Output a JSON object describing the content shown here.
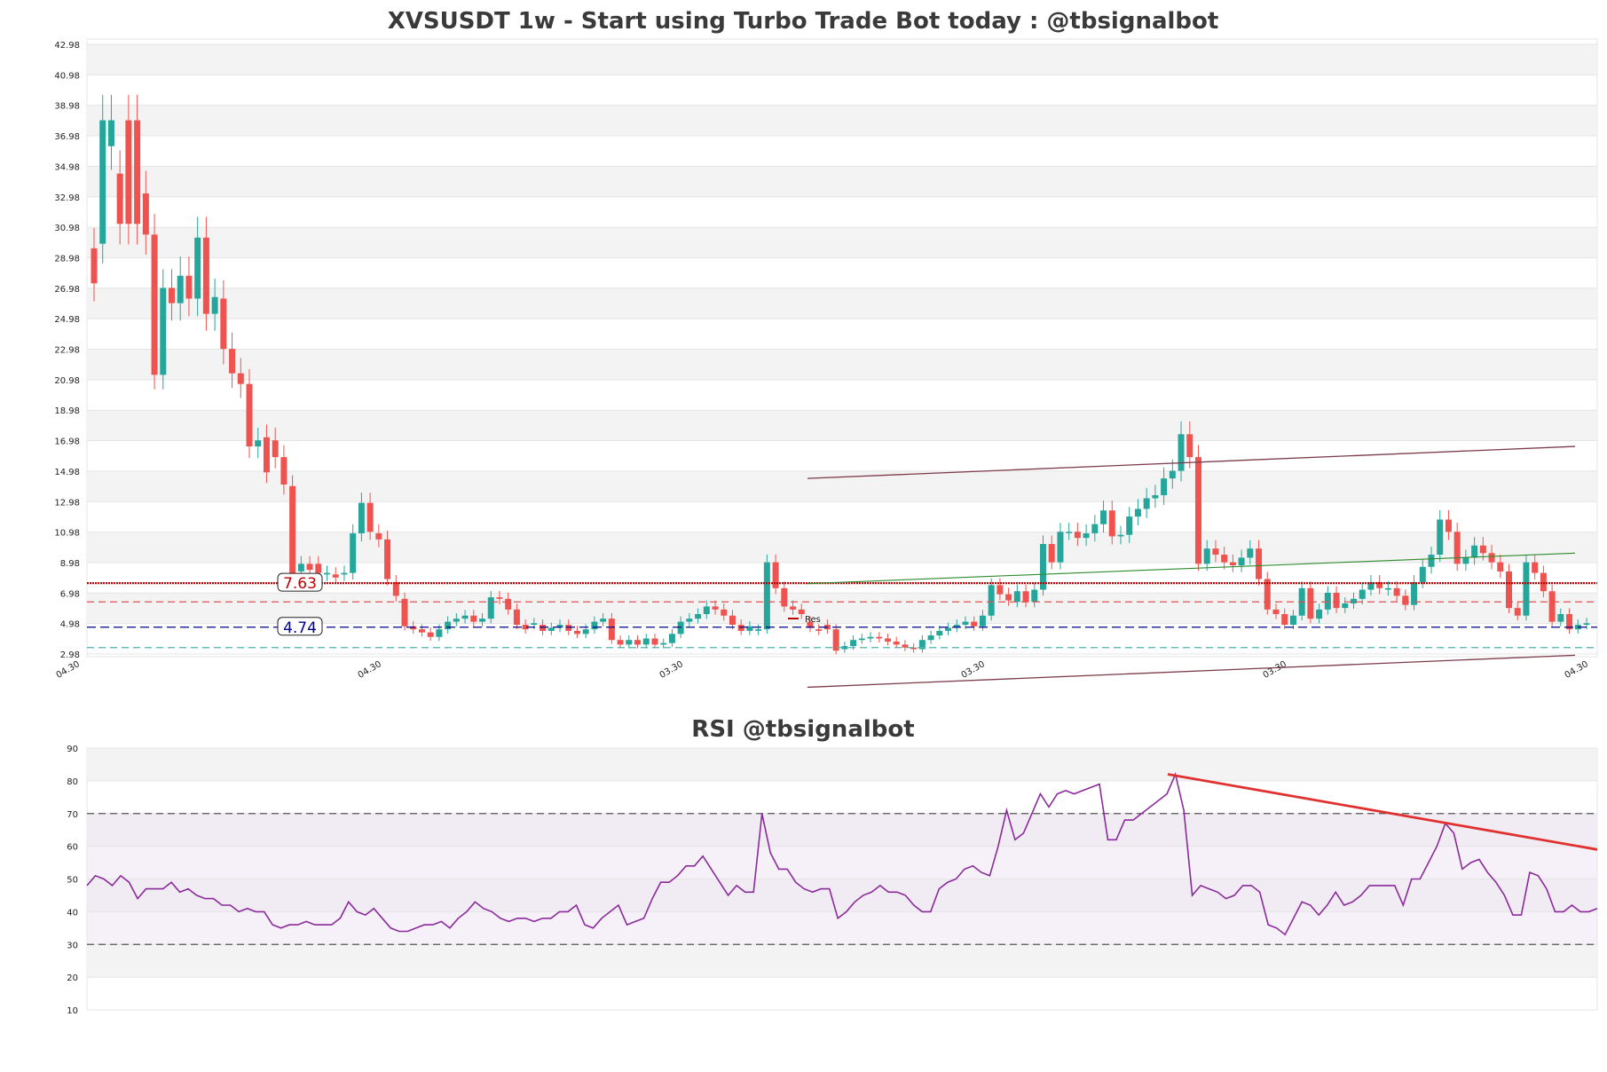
{
  "chart_data": [
    {
      "type": "candlestick",
      "title": "XVSUSDT 1w - Start using Turbo Trade Bot today : @tbsignalbot",
      "y_ticks": [
        "2.98",
        "4.98",
        "6.98",
        "8.98",
        "10.98",
        "12.98",
        "14.98",
        "16.98",
        "18.98",
        "20.98",
        "22.98",
        "24.98",
        "26.98",
        "28.98",
        "30.98",
        "32.98",
        "34.98",
        "36.98",
        "38.98",
        "40.98",
        "42.98"
      ],
      "ylim": [
        2.98,
        42.98
      ],
      "x_ticks": [
        "04.30",
        "04.30",
        "03.30",
        "03.30",
        "03.30",
        "04.30"
      ],
      "candles": [
        [
          29.6,
          27.3
        ],
        [
          29.9,
          38.0
        ],
        [
          36.3,
          38.0
        ],
        [
          34.5,
          31.2
        ],
        [
          38.0,
          31.2
        ],
        [
          38.0,
          31.2
        ],
        [
          33.2,
          30.5
        ],
        [
          30.5,
          21.3
        ],
        [
          21.3,
          27.0
        ],
        [
          27.0,
          26.0
        ],
        [
          26.0,
          27.8
        ],
        [
          27.8,
          26.3
        ],
        [
          26.3,
          30.3
        ],
        [
          30.3,
          25.3
        ],
        [
          25.3,
          26.4
        ],
        [
          26.3,
          23.0
        ],
        [
          23.0,
          21.4
        ],
        [
          21.4,
          20.7
        ],
        [
          20.7,
          16.6
        ],
        [
          16.6,
          17.0
        ],
        [
          17.2,
          14.9
        ],
        [
          17.0,
          15.9
        ],
        [
          15.9,
          14.1
        ],
        [
          14.0,
          8.0
        ],
        [
          8.4,
          8.9
        ],
        [
          8.9,
          8.5
        ],
        [
          8.9,
          8.3
        ],
        [
          8.2,
          8.3
        ],
        [
          8.2,
          8.0
        ],
        [
          8.2,
          8.3
        ],
        [
          8.3,
          10.9
        ],
        [
          10.9,
          12.9
        ],
        [
          12.9,
          11.0
        ],
        [
          10.9,
          10.5
        ],
        [
          10.5,
          7.9
        ],
        [
          7.7,
          6.8
        ],
        [
          6.6,
          4.8
        ],
        [
          4.8,
          4.6
        ],
        [
          4.6,
          4.4
        ],
        [
          4.4,
          4.1
        ],
        [
          4.1,
          4.6
        ],
        [
          4.6,
          5.1
        ],
        [
          5.1,
          5.3
        ],
        [
          5.3,
          5.5
        ],
        [
          5.5,
          5.1
        ],
        [
          5.1,
          5.3
        ],
        [
          5.3,
          6.7
        ],
        [
          6.7,
          6.6
        ],
        [
          6.6,
          5.9
        ],
        [
          5.9,
          4.9
        ],
        [
          4.9,
          4.6
        ],
        [
          4.9,
          5.0
        ],
        [
          4.9,
          4.5
        ],
        [
          4.5,
          4.7
        ],
        [
          4.7,
          4.9
        ],
        [
          4.9,
          4.5
        ],
        [
          4.5,
          4.3
        ],
        [
          4.3,
          4.6
        ],
        [
          4.6,
          5.1
        ],
        [
          5.1,
          5.3
        ],
        [
          5.3,
          3.9
        ],
        [
          3.9,
          3.6
        ],
        [
          3.6,
          3.9
        ],
        [
          3.9,
          3.6
        ],
        [
          3.6,
          4.0
        ],
        [
          4.0,
          3.6
        ],
        [
          3.6,
          3.7
        ],
        [
          3.7,
          4.3
        ],
        [
          4.3,
          5.1
        ],
        [
          5.1,
          5.3
        ],
        [
          5.3,
          5.6
        ],
        [
          5.6,
          6.1
        ],
        [
          6.1,
          5.9
        ],
        [
          5.9,
          5.5
        ],
        [
          5.5,
          4.9
        ],
        [
          4.9,
          4.5
        ],
        [
          4.5,
          4.8
        ],
        [
          4.5,
          4.6
        ],
        [
          4.6,
          9.0
        ],
        [
          9.0,
          7.3
        ],
        [
          7.3,
          6.1
        ],
        [
          6.1,
          5.9
        ],
        [
          5.9,
          5.6
        ],
        [
          5.1,
          4.7
        ],
        [
          4.6,
          4.5
        ],
        [
          4.9,
          4.6
        ],
        [
          4.6,
          3.2
        ],
        [
          3.3,
          3.5
        ],
        [
          3.5,
          3.9
        ],
        [
          3.9,
          4.0
        ],
        [
          4.0,
          4.1
        ],
        [
          4.1,
          4.0
        ],
        [
          4.0,
          3.8
        ],
        [
          3.8,
          3.6
        ],
        [
          3.6,
          3.4
        ],
        [
          3.4,
          3.3
        ],
        [
          3.3,
          3.9
        ],
        [
          3.9,
          4.2
        ],
        [
          4.2,
          4.5
        ],
        [
          4.5,
          4.7
        ],
        [
          4.7,
          4.9
        ],
        [
          4.9,
          5.1
        ],
        [
          5.1,
          4.8
        ],
        [
          4.8,
          5.5
        ],
        [
          5.5,
          7.5
        ],
        [
          7.5,
          6.9
        ],
        [
          6.9,
          6.5
        ],
        [
          6.4,
          7.1
        ],
        [
          7.1,
          6.4
        ],
        [
          6.4,
          7.2
        ],
        [
          7.2,
          10.2
        ],
        [
          10.2,
          9.0
        ],
        [
          9.0,
          11.0
        ],
        [
          11.0,
          11.0
        ],
        [
          11.0,
          10.6
        ],
        [
          10.6,
          10.9
        ],
        [
          10.9,
          11.5
        ],
        [
          11.5,
          12.4
        ],
        [
          12.4,
          10.7
        ],
        [
          10.7,
          10.8
        ],
        [
          10.8,
          12.0
        ],
        [
          12.0,
          12.5
        ],
        [
          12.5,
          13.2
        ],
        [
          13.2,
          13.4
        ],
        [
          13.4,
          14.5
        ],
        [
          14.5,
          15.0
        ],
        [
          15.0,
          17.4
        ],
        [
          17.4,
          15.9
        ],
        [
          15.9,
          8.9
        ],
        [
          8.9,
          9.9
        ],
        [
          9.9,
          9.5
        ],
        [
          9.5,
          9.0
        ],
        [
          9.0,
          8.8
        ],
        [
          8.8,
          9.3
        ],
        [
          9.3,
          9.9
        ],
        [
          9.9,
          7.9
        ],
        [
          7.9,
          5.9
        ],
        [
          5.9,
          5.6
        ],
        [
          5.6,
          4.9
        ],
        [
          4.9,
          5.5
        ],
        [
          5.5,
          7.3
        ],
        [
          7.3,
          5.3
        ],
        [
          5.3,
          5.9
        ],
        [
          5.9,
          7.0
        ],
        [
          7.0,
          6.0
        ],
        [
          6.0,
          6.3
        ],
        [
          6.3,
          6.6
        ],
        [
          6.6,
          7.2
        ],
        [
          7.2,
          7.7
        ],
        [
          7.7,
          7.3
        ],
        [
          7.2,
          7.3
        ],
        [
          7.3,
          6.8
        ],
        [
          6.8,
          6.2
        ],
        [
          6.2,
          7.7
        ],
        [
          7.7,
          8.7
        ],
        [
          8.7,
          9.5
        ],
        [
          9.5,
          11.8
        ],
        [
          11.8,
          11.0
        ],
        [
          11.0,
          8.9
        ],
        [
          8.9,
          9.3
        ],
        [
          9.3,
          10.1
        ],
        [
          10.1,
          9.6
        ],
        [
          9.6,
          9.0
        ],
        [
          9.0,
          8.4
        ],
        [
          8.4,
          6.0
        ],
        [
          6.0,
          5.5
        ],
        [
          5.5,
          9.0
        ],
        [
          9.0,
          8.3
        ],
        [
          8.3,
          7.1
        ],
        [
          7.1,
          5.1
        ],
        [
          5.1,
          5.6
        ],
        [
          5.6,
          4.6
        ],
        [
          4.6,
          4.9
        ],
        [
          4.9,
          5.0
        ]
      ],
      "levels": [
        {
          "label": "7.63",
          "value": 7.63,
          "color": "#c00000"
        },
        {
          "label": "4.74",
          "value": 4.74,
          "color": "#00008b"
        }
      ],
      "dashed_lines": [
        {
          "value": 6.4,
          "color": "#e05050"
        },
        {
          "value": 3.4,
          "color": "#4fb3b3"
        }
      ],
      "legend": {
        "label": "Res"
      },
      "colors": {
        "up": "#26a69a",
        "down": "#ef5350",
        "channel": "#7b3b4a",
        "trend": "#2e8b2e"
      }
    },
    {
      "type": "line",
      "title": "RSI @tbsignalbot",
      "y_ticks": [
        "10",
        "20",
        "30",
        "40",
        "50",
        "60",
        "70",
        "80",
        "90"
      ],
      "ylim": [
        10,
        90
      ],
      "series": [
        {
          "values": [
            48,
            51,
            50,
            48,
            51,
            49,
            44,
            47,
            47,
            47,
            49,
            46,
            47,
            45,
            44,
            44,
            42,
            42,
            40,
            41,
            40,
            40,
            36,
            35,
            36,
            36,
            37,
            36,
            36,
            36,
            38,
            43,
            40,
            39,
            41,
            38,
            35,
            34,
            34,
            35,
            36,
            36,
            37,
            35,
            38,
            40,
            43,
            41,
            40,
            38,
            37,
            38,
            38,
            37,
            38,
            38,
            40,
            40,
            42,
            36,
            35,
            38,
            40,
            42,
            36,
            37,
            38,
            44,
            49,
            49,
            51,
            54,
            54,
            57,
            53,
            49,
            45,
            48,
            46,
            46,
            70,
            58,
            53,
            53,
            49,
            47,
            46,
            47,
            47,
            38,
            40,
            43,
            45,
            46,
            48,
            46,
            46,
            45,
            42,
            40,
            40,
            47,
            49,
            50,
            53,
            54,
            52,
            51,
            60,
            71,
            62,
            64,
            70,
            76,
            72,
            76,
            77,
            76,
            77,
            78,
            79,
            62,
            62,
            68,
            68,
            70,
            72,
            74,
            76,
            82,
            71,
            45,
            48,
            47,
            46,
            44,
            45,
            48,
            48,
            46,
            36,
            35,
            33,
            38,
            43,
            42,
            39,
            42,
            46,
            42,
            43,
            45,
            48,
            48,
            48,
            48,
            42,
            50,
            50,
            55,
            60,
            67,
            64,
            53,
            55,
            56,
            52,
            49,
            45,
            39,
            39,
            52,
            51,
            47,
            40,
            40,
            42,
            40,
            40,
            41
          ]
        }
      ],
      "thresholds": [
        30,
        70
      ],
      "trendline_color": "#e03030",
      "line_color": "#8b2a9b"
    }
  ]
}
